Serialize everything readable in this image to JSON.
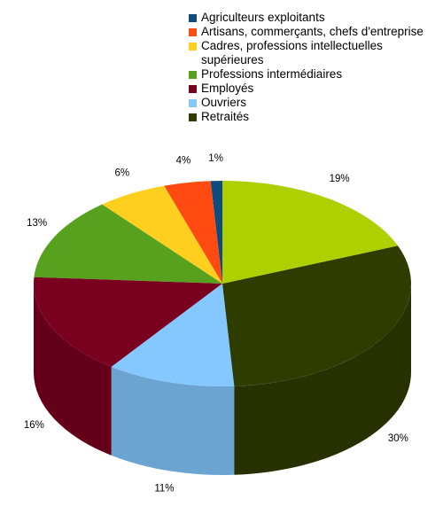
{
  "chart_data": {
    "type": "pie",
    "title": "",
    "categories": [
      "Agriculteurs exploitants",
      "Artisans, commerçants, chefs d'entreprise",
      "Cadres, professions intellectuelles supérieures",
      "Professions intermédiaires",
      "Employés",
      "Ouvriers",
      "Retraités"
    ],
    "values": [
      1,
      4,
      6,
      13,
      16,
      11,
      30
    ],
    "value_labels": [
      "1%",
      "4%",
      "6%",
      "13%",
      "16%",
      "11%",
      "30%"
    ],
    "colors": [
      "#0f4b7d",
      "#ff4b12",
      "#ffcf1f",
      "#58a11f",
      "#7a0020",
      "#84c8ff",
      "#2f3c00"
    ],
    "extra_slice": {
      "value": 19,
      "label": "19%",
      "color": "#aed000"
    },
    "legend_position": "top",
    "style": "3d"
  }
}
